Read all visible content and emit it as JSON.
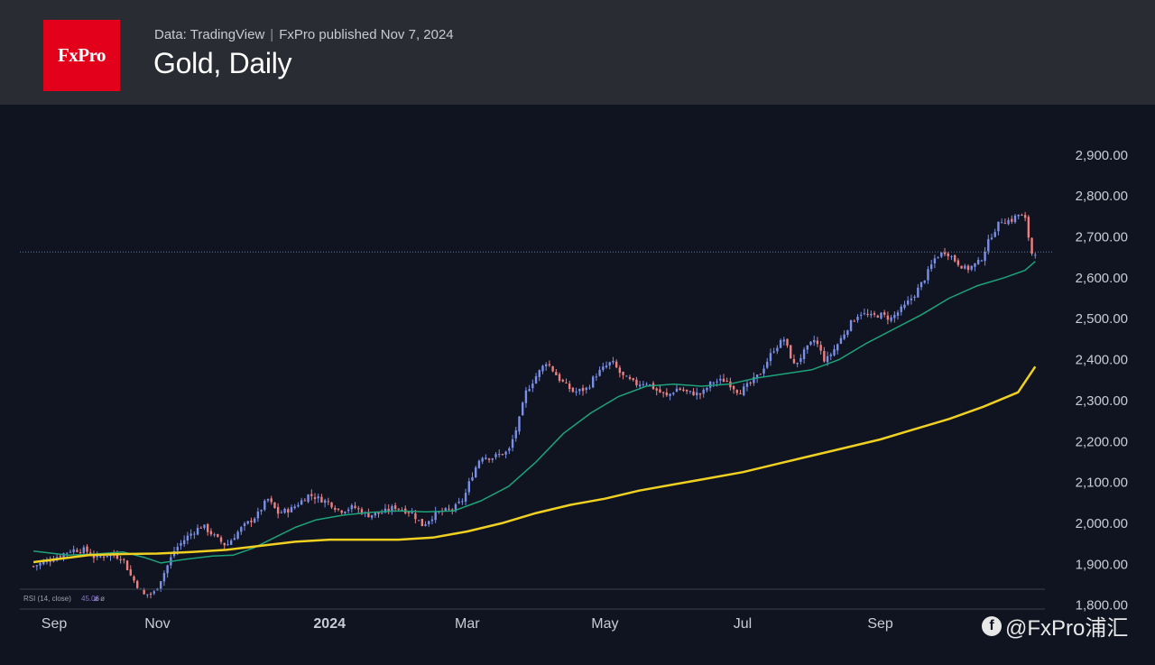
{
  "header": {
    "logo_text": "FxPro",
    "source": "Data: TradingView",
    "published": "FxPro published Nov 7, 2024",
    "title": "Gold, Daily"
  },
  "watermark": {
    "icon": "chat-bubble-icon",
    "text": "@FxPro浦汇"
  },
  "colors": {
    "background": "#0f1420",
    "header": "#2a2c34",
    "logo": "#e3001b",
    "candle_up": "#7a8fe8",
    "candle_down": "#f08080",
    "ma_short": "#1ea37a",
    "ma_long": "#f0d020"
  },
  "chart_data": {
    "type": "candlestick",
    "title": "Gold, Daily",
    "y_tick_labels": [
      "2,900.00",
      "2,800.00",
      "2,700.00",
      "2,600.00",
      "2,500.00",
      "2,400.00",
      "2,300.00",
      "2,200.00",
      "2,100.00",
      "2,000.00",
      "1,900.00",
      "1,800.00"
    ],
    "y_ticks": [
      2900,
      2800,
      2700,
      2600,
      2500,
      2400,
      2300,
      2200,
      2100,
      2000,
      1900,
      1800
    ],
    "ylim": [
      1770,
      2920
    ],
    "x_tick_labels": [
      "Sep",
      "Nov",
      "2024",
      "Mar",
      "May",
      "Jul",
      "Sep"
    ],
    "x_tick_index": [
      0,
      1.5,
      4,
      6,
      8,
      10,
      12
    ],
    "month_range": [
      -0.3,
      13.85
    ],
    "last_price": 2663,
    "close_path": [
      [
        -0.3,
        1895
      ],
      [
        0.0,
        1915
      ],
      [
        0.25,
        1935
      ],
      [
        0.45,
        1935
      ],
      [
        0.6,
        1915
      ],
      [
        0.8,
        1925
      ],
      [
        1.0,
        1915
      ],
      [
        1.1,
        1875
      ],
      [
        1.3,
        1825
      ],
      [
        1.45,
        1830
      ],
      [
        1.6,
        1880
      ],
      [
        1.75,
        1935
      ],
      [
        1.95,
        1970
      ],
      [
        2.15,
        1995
      ],
      [
        2.35,
        1965
      ],
      [
        2.5,
        1945
      ],
      [
        2.7,
        1985
      ],
      [
        2.95,
        2020
      ],
      [
        3.1,
        2060
      ],
      [
        3.25,
        2025
      ],
      [
        3.45,
        2035
      ],
      [
        3.7,
        2070
      ],
      [
        3.85,
        2060
      ],
      [
        4.0,
        2050
      ],
      [
        4.15,
        2030
      ],
      [
        4.35,
        2040
      ],
      [
        4.55,
        2020
      ],
      [
        4.75,
        2025
      ],
      [
        4.95,
        2040
      ],
      [
        5.05,
        2035
      ],
      [
        5.2,
        2025
      ],
      [
        5.35,
        1995
      ],
      [
        5.55,
        2025
      ],
      [
        5.8,
        2035
      ],
      [
        5.95,
        2060
      ],
      [
        6.05,
        2110
      ],
      [
        6.2,
        2165
      ],
      [
        6.35,
        2160
      ],
      [
        6.5,
        2170
      ],
      [
        6.6,
        2175
      ],
      [
        6.75,
        2250
      ],
      [
        6.85,
        2320
      ],
      [
        7.0,
        2360
      ],
      [
        7.15,
        2395
      ],
      [
        7.35,
        2350
      ],
      [
        7.55,
        2320
      ],
      [
        7.75,
        2330
      ],
      [
        7.85,
        2360
      ],
      [
        7.95,
        2375
      ],
      [
        8.1,
        2395
      ],
      [
        8.25,
        2360
      ],
      [
        8.45,
        2340
      ],
      [
        8.6,
        2345
      ],
      [
        8.75,
        2325
      ],
      [
        8.9,
        2310
      ],
      [
        9.05,
        2330
      ],
      [
        9.2,
        2320
      ],
      [
        9.4,
        2315
      ],
      [
        9.55,
        2345
      ],
      [
        9.75,
        2350
      ],
      [
        9.95,
        2320
      ],
      [
        10.1,
        2340
      ],
      [
        10.25,
        2365
      ],
      [
        10.45,
        2425
      ],
      [
        10.6,
        2450
      ],
      [
        10.75,
        2385
      ],
      [
        10.9,
        2420
      ],
      [
        11.05,
        2450
      ],
      [
        11.2,
        2395
      ],
      [
        11.35,
        2430
      ],
      [
        11.55,
        2485
      ],
      [
        11.7,
        2515
      ],
      [
        11.85,
        2505
      ],
      [
        12.0,
        2510
      ],
      [
        12.15,
        2500
      ],
      [
        12.35,
        2530
      ],
      [
        12.5,
        2560
      ],
      [
        12.65,
        2600
      ],
      [
        12.8,
        2650
      ],
      [
        12.95,
        2665
      ],
      [
        13.1,
        2640
      ],
      [
        13.25,
        2620
      ],
      [
        13.45,
        2640
      ],
      [
        13.6,
        2700
      ],
      [
        13.75,
        2740
      ],
      [
        13.9,
        2740
      ],
      [
        14.0,
        2755
      ],
      [
        14.1,
        2745
      ],
      [
        14.2,
        2660
      ],
      [
        14.25,
        2663
      ]
    ],
    "series": [
      {
        "type": "line",
        "points": [
          [
            -0.3,
            1932
          ],
          [
            0.2,
            1922
          ],
          [
            0.6,
            1925
          ],
          [
            1.0,
            1930
          ],
          [
            1.3,
            1917
          ],
          [
            1.55,
            1903
          ],
          [
            1.9,
            1912
          ],
          [
            2.3,
            1920
          ],
          [
            2.6,
            1922
          ],
          [
            2.9,
            1940
          ],
          [
            3.2,
            1965
          ],
          [
            3.5,
            1990
          ],
          [
            3.8,
            2008
          ],
          [
            4.2,
            2020
          ],
          [
            4.6,
            2027
          ],
          [
            5.0,
            2030
          ],
          [
            5.4,
            2028
          ],
          [
            5.8,
            2030
          ],
          [
            6.2,
            2055
          ],
          [
            6.6,
            2090
          ],
          [
            7.0,
            2150
          ],
          [
            7.4,
            2220
          ],
          [
            7.8,
            2270
          ],
          [
            8.2,
            2310
          ],
          [
            8.6,
            2335
          ],
          [
            9.0,
            2340
          ],
          [
            9.4,
            2335
          ],
          [
            9.8,
            2340
          ],
          [
            10.2,
            2355
          ],
          [
            10.6,
            2365
          ],
          [
            11.0,
            2375
          ],
          [
            11.4,
            2400
          ],
          [
            11.8,
            2440
          ],
          [
            12.2,
            2475
          ],
          [
            12.6,
            2510
          ],
          [
            13.0,
            2550
          ],
          [
            13.4,
            2580
          ],
          [
            13.8,
            2600
          ],
          [
            14.1,
            2618
          ],
          [
            14.25,
            2640
          ]
        ]
      },
      {
        "type": "line",
        "points": [
          [
            -0.3,
            1905
          ],
          [
            0.5,
            1922
          ],
          [
            1.0,
            1925
          ],
          [
            1.5,
            1926
          ],
          [
            2.0,
            1930
          ],
          [
            2.5,
            1935
          ],
          [
            3.0,
            1945
          ],
          [
            3.5,
            1955
          ],
          [
            4.0,
            1960
          ],
          [
            4.5,
            1960
          ],
          [
            5.0,
            1960
          ],
          [
            5.5,
            1965
          ],
          [
            6.0,
            1980
          ],
          [
            6.5,
            2000
          ],
          [
            7.0,
            2025
          ],
          [
            7.5,
            2045
          ],
          [
            8.0,
            2060
          ],
          [
            8.5,
            2080
          ],
          [
            9.0,
            2095
          ],
          [
            9.5,
            2110
          ],
          [
            10.0,
            2125
          ],
          [
            10.5,
            2145
          ],
          [
            11.0,
            2165
          ],
          [
            11.5,
            2185
          ],
          [
            12.0,
            2205
          ],
          [
            12.5,
            2230
          ],
          [
            13.0,
            2255
          ],
          [
            13.5,
            2285
          ],
          [
            14.0,
            2320
          ],
          [
            14.25,
            2383
          ]
        ]
      }
    ],
    "indicator_label": "RSI (14, close)",
    "indicator_value": "45.06",
    "indicator_extra": "ø ø"
  }
}
